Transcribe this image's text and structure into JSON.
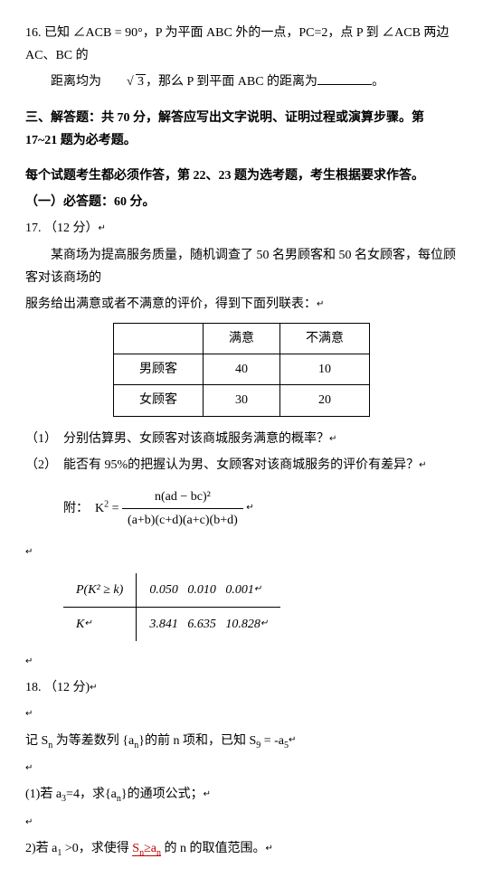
{
  "q16": {
    "num": "16.",
    "l1a": "已知 ∠ACB = 90°，P 为平面 ABC 外的一点，PC=2，点 P 到 ∠ACB 两边 AC、BC 的",
    "l2a": "距离均为",
    "sqrtv": "3",
    "l2b": "，那么 P 到平面 ABC 的距离为",
    "end": "。"
  },
  "section3": {
    "t1": "三、解答题：共 70 分，解答应写出文字说明、证明过程或演算步骤。第 17~21 题为必考题。",
    "t2": "每个试题考生都必须作答，第 22、23 题为选考题，考生根据要求作答。",
    "t3": "（一）必答题：60 分。"
  },
  "q17": {
    "num": "17.",
    "pts": "（12 分）",
    "l1": "某商场为提高服务质量，随机调查了 50 名男顾客和 50 名女顾客，每位顾客对该商场的",
    "l2": "服务给出满意或者不满意的评价，得到下面列联表：",
    "table": {
      "h1": "满意",
      "h2": "不满意",
      "r1c0": "男顾客",
      "r1c1": "40",
      "r1c2": "10",
      "r2c0": "女顾客",
      "r2c1": "30",
      "r2c2": "20"
    },
    "p1": "（1）　分别估算男、女顾客对该商城服务满意的概率？",
    "p2": "（2）　能否有 95%的把握认为男、女顾客对该商城服务的评价有差异？",
    "formula": {
      "label": "附：　K",
      "eq": " = ",
      "num": "n(ad − bc)²",
      "den": "(a+b)(c+d)(a+c)(b+d)"
    },
    "ktable": {
      "h0": "P(K² ≥ k)",
      "v01": "0.050",
      "v02": "0.010",
      "v03": "0.001",
      "h1": "K",
      "v11": "3.841",
      "v12": "6.635",
      "v13": "10.828"
    }
  },
  "q18": {
    "num": "18.",
    "pts": "（12 分)",
    "l1a": "记 S",
    "l1b": " 为等差数列 {a",
    "l1c": "}的前 n 项和，已知 S",
    "l1d": " = -a",
    "p1a": "(1)若 a",
    "p1b": "=4，求{a",
    "p1c": "}的通项公式；",
    "p2a": "2)若 a",
    "p2b": " >0，求使得 ",
    "p2hl": "S",
    "p2hl2": "≥a",
    "p2c": " 的 n 的取值范围。"
  }
}
